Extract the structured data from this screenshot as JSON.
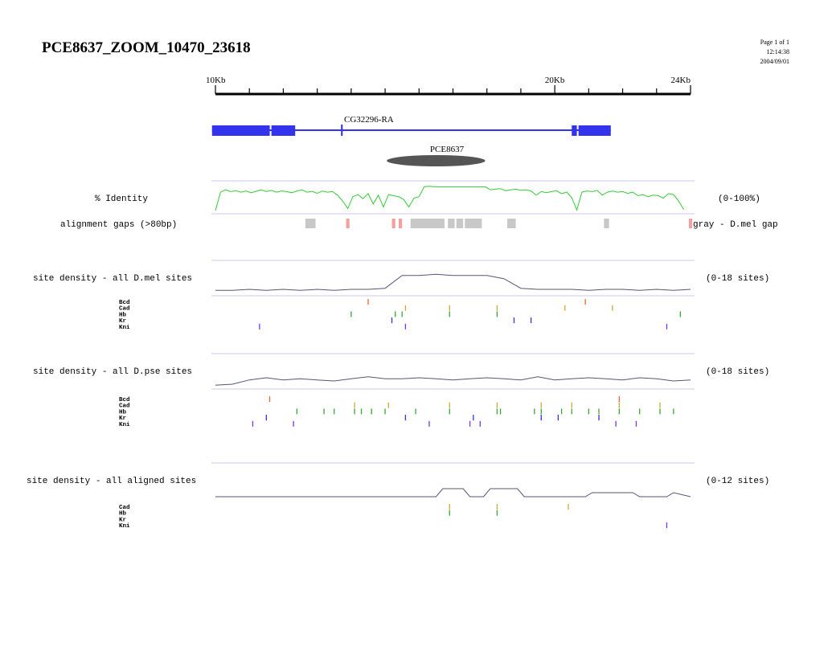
{
  "header": {
    "title": "PCE8637_ZOOM_10470_23618",
    "page": "Page 1 of 1",
    "time": "12:14:38",
    "date": "2004/09/01"
  },
  "ruler": {
    "ticks_labeled": [
      {
        "label": "10Kb",
        "pos_kb": 10
      },
      {
        "label": "20Kb",
        "pos_kb": 20
      },
      {
        "label": "24Kb",
        "pos_kb": 24
      }
    ],
    "minor_tick_step_kb": 1,
    "range_kb": [
      10,
      24
    ]
  },
  "gene": {
    "name": "CG32296-RA",
    "color": "#3333ee",
    "exons_kb": [
      [
        9.9,
        11.6
      ],
      [
        11.65,
        12.35
      ],
      [
        13.7,
        13.75
      ],
      [
        20.5,
        20.65
      ],
      [
        20.7,
        21.65
      ]
    ],
    "span_kb": [
      9.9,
      21.65
    ]
  },
  "element": {
    "name": "PCE8637",
    "center_kb": 16.5,
    "width_kb": 2.9,
    "color": "#555555"
  },
  "identity": {
    "label": "% Identity",
    "range_label": "(0-100%)",
    "color": "#33cc33",
    "x_kb": [
      10.0,
      10.15,
      10.3,
      10.45,
      10.6,
      10.75,
      10.9,
      11.05,
      11.2,
      11.35,
      11.5,
      11.65,
      11.8,
      11.95,
      12.1,
      12.25,
      12.4,
      12.55,
      12.7,
      12.85,
      13.0,
      13.15,
      13.3,
      13.45,
      13.6,
      13.75,
      13.9,
      14.05,
      14.2,
      14.35,
      14.5,
      14.65,
      14.8,
      14.95,
      15.1,
      15.25,
      15.4,
      15.55,
      15.7,
      15.85,
      16.0,
      16.15,
      16.3,
      16.45,
      16.6,
      16.75,
      16.9,
      17.05,
      17.2,
      17.35,
      17.5,
      17.65,
      17.8,
      17.95,
      18.1,
      18.25,
      18.4,
      18.55,
      18.7,
      18.85,
      19.0,
      19.15,
      19.3,
      19.45,
      19.6,
      19.75,
      19.9,
      20.05,
      20.2,
      20.35,
      20.5,
      20.65,
      20.8,
      20.95,
      21.1,
      21.25,
      21.4,
      21.55,
      21.7,
      21.85,
      22.0,
      22.15,
      22.3,
      22.45,
      22.6,
      22.75,
      22.9,
      23.05,
      23.2,
      23.35,
      23.5,
      23.65,
      23.8
    ],
    "y_pct": [
      8,
      70,
      78,
      72,
      75,
      70,
      74,
      68,
      73,
      78,
      72,
      76,
      70,
      74,
      72,
      68,
      74,
      78,
      70,
      73,
      66,
      74,
      70,
      72,
      60,
      40,
      15,
      55,
      62,
      48,
      65,
      30,
      60,
      20,
      62,
      58,
      55,
      45,
      20,
      50,
      55,
      88,
      90,
      88,
      88,
      88,
      88,
      88,
      88,
      88,
      88,
      88,
      88,
      88,
      78,
      80,
      82,
      75,
      78,
      80,
      76,
      78,
      74,
      60,
      72,
      68,
      72,
      75,
      65,
      70,
      52,
      10,
      70,
      74,
      72,
      76,
      60,
      70,
      74,
      70,
      72,
      66,
      70,
      58,
      62,
      55,
      60,
      58,
      50,
      65,
      62,
      40,
      12
    ]
  },
  "gaps": {
    "label": "alignment gaps (>80bp)",
    "legend": "gray - D.mel gap",
    "gray_kb": [
      [
        12.65,
        12.95
      ],
      [
        15.75,
        16.75
      ],
      [
        16.85,
        17.05
      ],
      [
        17.1,
        17.3
      ],
      [
        17.35,
        17.85
      ],
      [
        18.6,
        18.85
      ],
      [
        21.45,
        21.6
      ]
    ],
    "pink_kb": [
      [
        13.85,
        13.95
      ],
      [
        15.2,
        15.3
      ],
      [
        15.4,
        15.5
      ],
      [
        23.95,
        24.05
      ]
    ],
    "gray_color": "#c8c8c8",
    "pink_color": "#f5a0a0"
  },
  "tracks": [
    {
      "label": "site density - all D.mel sites",
      "range_label": "(0-18 sites)",
      "line_color": "#555577",
      "density_x_kb": [
        10.0,
        10.5,
        11.0,
        11.5,
        12.0,
        12.5,
        13.0,
        13.5,
        14.0,
        14.5,
        15.0,
        15.5,
        16.0,
        16.5,
        17.0,
        17.5,
        18.0,
        18.5,
        19.0,
        19.5,
        20.0,
        20.5,
        21.0,
        21.5,
        22.0,
        22.5,
        23.0,
        23.5,
        24.0
      ],
      "density_y": [
        2,
        2,
        3,
        2,
        3,
        2,
        3,
        2,
        3,
        3,
        4,
        16,
        16,
        17,
        16,
        16,
        16,
        13,
        4,
        3,
        3,
        3,
        2,
        3,
        3,
        2,
        3,
        2,
        3
      ],
      "factors": [
        {
          "name": "Bcd",
          "color": "#ee6633",
          "sites_kb": [
            14.5,
            20.9
          ]
        },
        {
          "name": "Cad",
          "color": "#ccaa33",
          "sites_kb": [
            15.6,
            16.9,
            18.3,
            20.3,
            21.7
          ]
        },
        {
          "name": "Hb",
          "color": "#33aa33",
          "sites_kb": [
            14.0,
            15.3,
            15.5,
            16.9,
            18.3,
            23.7
          ]
        },
        {
          "name": "Kr",
          "color": "#3333cc",
          "sites_kb": [
            15.2,
            18.8,
            19.3
          ]
        },
        {
          "name": "Kni",
          "color": "#7733ee",
          "sites_kb": [
            11.3,
            15.6,
            23.3
          ]
        }
      ]
    },
    {
      "label": "site density - all D.pse sites",
      "range_label": "(0-18 sites)",
      "line_color": "#555577",
      "density_x_kb": [
        10.0,
        10.5,
        11.0,
        11.5,
        12.0,
        12.5,
        13.0,
        13.5,
        14.0,
        14.5,
        15.0,
        15.5,
        16.0,
        16.5,
        17.0,
        17.5,
        18.0,
        18.5,
        19.0,
        19.5,
        20.0,
        20.5,
        21.0,
        21.5,
        22.0,
        22.5,
        23.0,
        23.5,
        24.0
      ],
      "density_y": [
        2,
        3,
        7,
        9,
        7,
        8,
        7,
        6,
        8,
        10,
        8,
        8,
        9,
        8,
        7,
        8,
        9,
        8,
        7,
        10,
        7,
        8,
        9,
        8,
        7,
        9,
        8,
        6,
        7
      ],
      "factors": [
        {
          "name": "Bcd",
          "color": "#ee6633",
          "sites_kb": [
            11.6,
            21.9
          ]
        },
        {
          "name": "Cad",
          "color": "#ccaa33",
          "sites_kb": [
            14.1,
            15.1,
            16.9,
            18.3,
            19.6,
            20.5,
            21.9,
            23.1
          ]
        },
        {
          "name": "Hb",
          "color": "#33aa33",
          "sites_kb": [
            12.4,
            13.2,
            13.5,
            14.1,
            14.3,
            14.6,
            15.0,
            15.9,
            16.9,
            18.3,
            18.4,
            19.4,
            19.6,
            20.2,
            20.5,
            21.0,
            21.3,
            21.9,
            22.5,
            23.1,
            23.5
          ]
        },
        {
          "name": "Kr",
          "color": "#3333cc",
          "sites_kb": [
            11.5,
            15.6,
            17.6,
            19.6,
            20.1,
            21.3
          ]
        },
        {
          "name": "Kni",
          "color": "#7733ee",
          "sites_kb": [
            11.1,
            12.3,
            16.3,
            17.5,
            17.8,
            21.8,
            22.4
          ]
        }
      ]
    },
    {
      "label": "site density - all aligned sites",
      "range_label": "(0-12 sites)",
      "line_color": "#555577",
      "density_x_kb": [
        10.0,
        16.5,
        16.7,
        17.3,
        17.5,
        17.9,
        18.1,
        18.9,
        19.1,
        20.9,
        21.1,
        22.3,
        22.5,
        23.3,
        23.5,
        24.0
      ],
      "density_y": [
        0,
        0,
        6,
        6,
        0,
        0,
        6,
        6,
        0,
        0,
        3,
        3,
        0,
        0,
        3,
        0
      ],
      "factors": [
        {
          "name": "Cad",
          "color": "#ccaa33",
          "sites_kb": [
            16.9,
            18.3,
            20.4
          ]
        },
        {
          "name": "Hb",
          "color": "#33aa33",
          "sites_kb": [
            16.9,
            18.3
          ]
        },
        {
          "name": "Kr",
          "color": "#3333cc",
          "sites_kb": []
        },
        {
          "name": "Kni",
          "color": "#7733ee",
          "sites_kb": [
            23.3
          ]
        }
      ]
    }
  ]
}
